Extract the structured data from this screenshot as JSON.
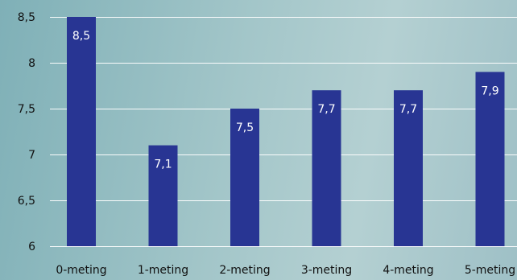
{
  "chart_data": {
    "type": "bar",
    "categories": [
      "0-meting",
      "1-meting",
      "2-meting",
      "3-meting",
      "4-meting",
      "5-meting"
    ],
    "values": [
      8.5,
      7.1,
      7.5,
      7.7,
      7.7,
      7.9
    ],
    "value_labels": [
      "8,5",
      "7,1",
      "7,5",
      "7,7",
      "7,7",
      "7,9"
    ],
    "ylim": [
      6,
      8.5
    ],
    "yticks": [
      6,
      6.5,
      7,
      7.5,
      8,
      8.5
    ],
    "ytick_labels": [
      "6",
      "6,5",
      "7",
      "7,5",
      "8",
      "8,5"
    ],
    "title": "",
    "xlabel": "",
    "ylabel": "",
    "grid": true,
    "legend": "none",
    "colors": {
      "bar": "#283593",
      "grid": "#ffffff",
      "data_label": "#ffffff",
      "tick_label": "#111111"
    }
  }
}
